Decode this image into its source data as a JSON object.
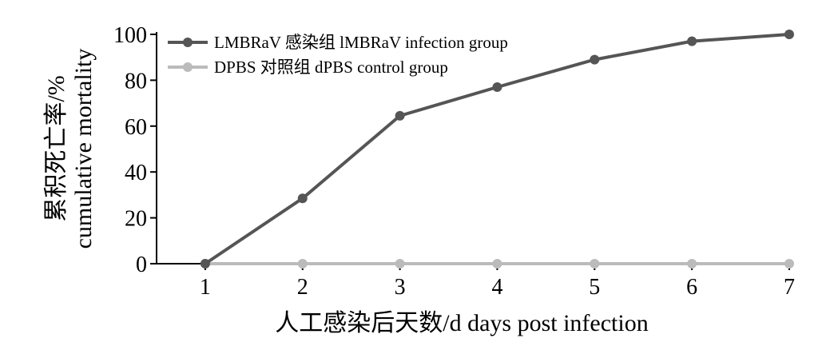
{
  "chart_data": {
    "type": "line",
    "x": [
      1,
      2,
      3,
      4,
      5,
      6,
      7
    ],
    "series": [
      {
        "name": "LMBRaV 感染组 lMBRaV infection group",
        "values": [
          0,
          28.5,
          64.5,
          77,
          89,
          97,
          100
        ],
        "color": "#555555"
      },
      {
        "name": "DPBS 对照组 dPBS control group",
        "values": [
          0,
          0,
          0,
          0,
          0,
          0,
          0
        ],
        "color": "#bbbbbb"
      }
    ],
    "xlabel": "人工感染后天数/d days post infection",
    "ylabel_cn": "累积死亡率/%",
    "ylabel_en": "cumulative mortality",
    "xlim": [
      0.5,
      7
    ],
    "ylim": [
      0,
      100
    ],
    "xticks": [
      1,
      2,
      3,
      4,
      5,
      6,
      7
    ],
    "yticks": [
      0,
      20,
      40,
      60,
      80,
      100
    ],
    "grid": false,
    "legend_position": "top-left"
  }
}
